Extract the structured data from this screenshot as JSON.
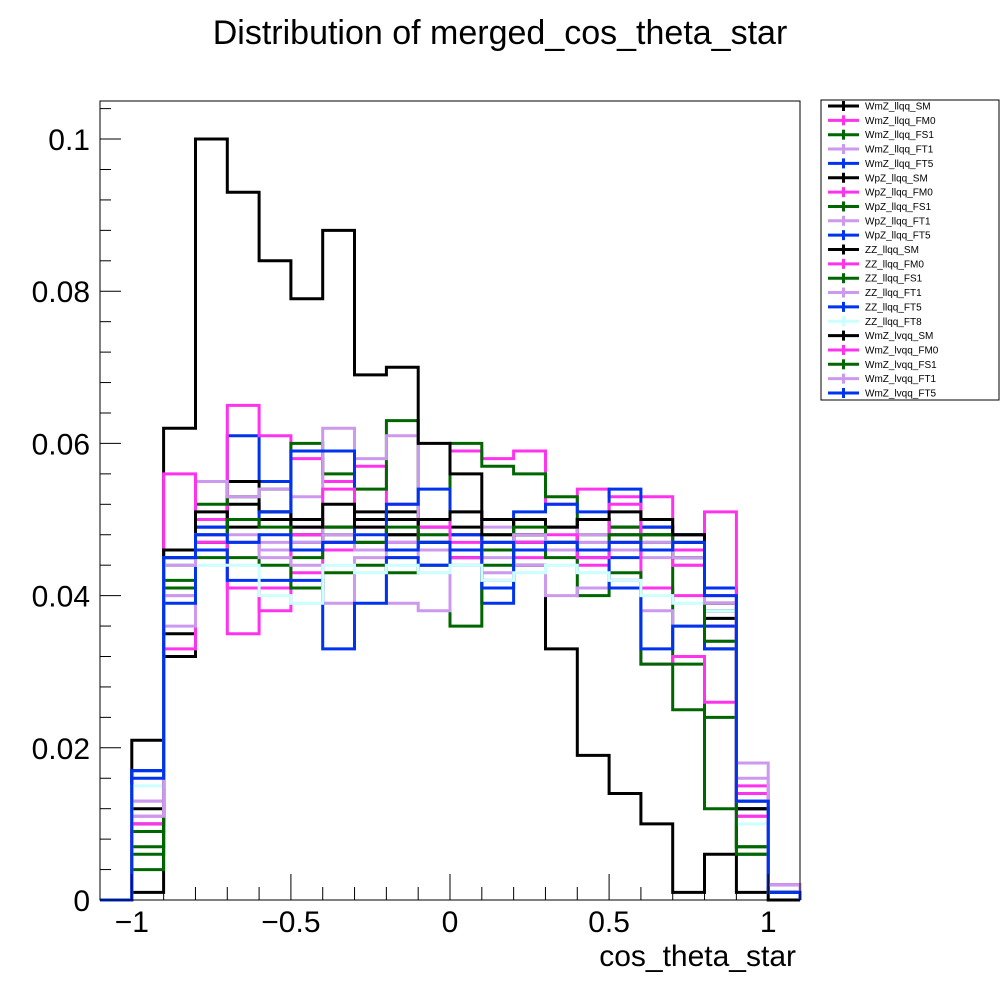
{
  "chart_data": {
    "type": "histogram",
    "title": "Distribution of merged_cos_theta_star",
    "xlabel": "cos_theta_star",
    "ylabel": "",
    "xlim": [
      -1.1,
      1.1
    ],
    "ylim": [
      0,
      0.105
    ],
    "bin_edges": [
      -1.1,
      -1.0,
      -0.9,
      -0.8,
      -0.7,
      -0.6,
      -0.5,
      -0.4,
      -0.3,
      -0.2,
      -0.1,
      0.0,
      0.1,
      0.2,
      0.3,
      0.4,
      0.5,
      0.6,
      0.7,
      0.8,
      0.9,
      1.0,
      1.1
    ],
    "x_ticks": [
      {
        "value": -1,
        "label": "−1"
      },
      {
        "value": -0.5,
        "label": "−0.5"
      },
      {
        "value": 0,
        "label": "0"
      },
      {
        "value": 0.5,
        "label": "0.5"
      },
      {
        "value": 1,
        "label": "1"
      }
    ],
    "y_ticks": [
      {
        "value": 0,
        "label": "0"
      },
      {
        "value": 0.02,
        "label": "0.02"
      },
      {
        "value": 0.04,
        "label": "0.04"
      },
      {
        "value": 0.06,
        "label": "0.06"
      },
      {
        "value": 0.08,
        "label": "0.08"
      },
      {
        "value": 0.1,
        "label": "0.1"
      }
    ],
    "legend_position": "right",
    "series": [
      {
        "name": "WmZ_llqq_SM",
        "color": "#000000",
        "values": [
          0,
          0.001,
          0.035,
          0.05,
          0.052,
          0.051,
          0.05,
          0.049,
          0.05,
          0.051,
          0.049,
          0.048,
          0.047,
          0.048,
          0.049,
          0.05,
          0.049,
          0.048,
          0.047,
          0.038,
          0.013,
          0.001
        ]
      },
      {
        "name": "WmZ_llqq_FM0",
        "color": "#ff33ee",
        "values": [
          0,
          0.011,
          0.046,
          0.047,
          0.035,
          0.041,
          0.043,
          0.046,
          0.047,
          0.046,
          0.047,
          0.048,
          0.046,
          0.045,
          0.047,
          0.044,
          0.042,
          0.041,
          0.04,
          0.036,
          0.011,
          0.001
        ]
      },
      {
        "name": "WmZ_llqq_FS1",
        "color": "#006600",
        "values": [
          0,
          0.004,
          0.042,
          0.046,
          0.047,
          0.046,
          0.045,
          0.049,
          0.047,
          0.048,
          0.046,
          0.045,
          0.048,
          0.047,
          0.046,
          0.048,
          0.047,
          0.048,
          0.046,
          0.033,
          0.006,
          0.001
        ]
      },
      {
        "name": "WmZ_llqq_FT1",
        "color": "#cc99ee",
        "values": [
          0,
          0.009,
          0.04,
          0.049,
          0.048,
          0.047,
          0.049,
          0.047,
          0.046,
          0.045,
          0.048,
          0.046,
          0.045,
          0.047,
          0.046,
          0.047,
          0.046,
          0.045,
          0.046,
          0.037,
          0.012,
          0.002
        ]
      },
      {
        "name": "WmZ_llqq_FT5",
        "color": "#0033ee",
        "values": [
          0,
          0.017,
          0.046,
          0.049,
          0.061,
          0.055,
          0.047,
          0.047,
          0.046,
          0.046,
          0.047,
          0.045,
          0.047,
          0.046,
          0.047,
          0.046,
          0.045,
          0.046,
          0.045,
          0.041,
          0.013,
          0.001
        ]
      },
      {
        "name": "WpZ_llqq_SM",
        "color": "#000000",
        "values": [
          0,
          0.012,
          0.032,
          0.047,
          0.055,
          0.051,
          0.048,
          0.047,
          0.051,
          0.05,
          0.047,
          0.049,
          0.05,
          0.048,
          0.047,
          0.05,
          0.048,
          0.049,
          0.048,
          0.037,
          0.012,
          0.001
        ]
      },
      {
        "name": "WpZ_llqq_FM0",
        "color": "#ff33ee",
        "values": [
          0,
          0.009,
          0.033,
          0.05,
          0.065,
          0.061,
          0.058,
          0.055,
          0.057,
          0.052,
          0.05,
          0.059,
          0.058,
          0.059,
          0.052,
          0.054,
          0.053,
          0.053,
          0.046,
          0.051,
          0.015,
          0.001
        ]
      },
      {
        "name": "WpZ_llqq_FS1",
        "color": "#006600",
        "values": [
          0,
          0.007,
          0.041,
          0.052,
          0.053,
          0.054,
          0.06,
          0.056,
          0.054,
          0.063,
          0.048,
          0.06,
          0.057,
          0.056,
          0.053,
          0.05,
          0.049,
          0.048,
          0.031,
          0.024,
          0.007,
          0.001
        ]
      },
      {
        "name": "WpZ_llqq_FT1",
        "color": "#cc99ee",
        "values": [
          0,
          0.013,
          0.036,
          0.055,
          0.053,
          0.054,
          0.053,
          0.062,
          0.058,
          0.061,
          0.05,
          0.051,
          0.049,
          0.05,
          0.049,
          0.048,
          0.047,
          0.046,
          0.044,
          0.039,
          0.018,
          0.002
        ]
      },
      {
        "name": "WpZ_llqq_FT5",
        "color": "#0033ee",
        "values": [
          0,
          0.017,
          0.045,
          0.049,
          0.05,
          0.051,
          0.059,
          0.059,
          0.046,
          0.052,
          0.054,
          0.048,
          0.039,
          0.051,
          0.052,
          0.051,
          0.054,
          0.049,
          0.048,
          0.036,
          0.013,
          0.002
        ]
      },
      {
        "name": "ZZ_llqq_SM",
        "color": "#000000",
        "values": [
          0,
          0.021,
          0.062,
          0.1,
          0.093,
          0.084,
          0.079,
          0.088,
          0.069,
          0.07,
          0.06,
          0.056,
          0.05,
          0.044,
          0.033,
          0.019,
          0.014,
          0.01,
          0.001,
          0.006,
          0.001,
          0
        ]
      },
      {
        "name": "ZZ_llqq_FM0",
        "color": "#ff33ee",
        "values": [
          0,
          0.01,
          0.056,
          0.047,
          0.041,
          0.038,
          0.049,
          0.054,
          0.049,
          0.047,
          0.05,
          0.045,
          0.042,
          0.047,
          0.048,
          0.046,
          0.052,
          0.031,
          0.032,
          0.026,
          0.014,
          0.002
        ]
      },
      {
        "name": "ZZ_llqq_FS1",
        "color": "#006600",
        "values": [
          0,
          0.009,
          0.044,
          0.045,
          0.045,
          0.044,
          0.041,
          0.043,
          0.044,
          0.043,
          0.044,
          0.036,
          0.044,
          0.047,
          0.045,
          0.04,
          0.043,
          0.031,
          0.025,
          0.012,
          0.006,
          0.001
        ]
      },
      {
        "name": "ZZ_llqq_FT1",
        "color": "#cc99ee",
        "values": [
          0,
          0.013,
          0.04,
          0.048,
          0.047,
          0.045,
          0.044,
          0.039,
          0.045,
          0.039,
          0.038,
          0.044,
          0.043,
          0.044,
          0.04,
          0.041,
          0.042,
          0.038,
          0.036,
          0.034,
          0.016,
          0.002
        ]
      },
      {
        "name": "ZZ_llqq_FT5",
        "color": "#0033ee",
        "values": [
          0,
          0.017,
          0.039,
          0.046,
          0.042,
          0.042,
          0.042,
          0.033,
          0.039,
          0.045,
          0.044,
          0.046,
          0.041,
          0.047,
          0.046,
          0.045,
          0.041,
          0.033,
          0.036,
          0.033,
          0.012,
          0.001
        ]
      },
      {
        "name": "ZZ_llqq_FT8",
        "color": "#ccffff",
        "values": [
          0,
          0.015,
          0.044,
          0.044,
          0.044,
          0.04,
          0.039,
          0.044,
          0.043,
          0.044,
          0.043,
          0.044,
          0.042,
          0.043,
          0.044,
          0.043,
          0.042,
          0.04,
          0.039,
          0.038,
          0.01,
          0.001
        ]
      },
      {
        "name": "WmZ_lvqq_SM",
        "color": "#000000",
        "values": [
          0,
          0.01,
          0.046,
          0.051,
          0.049,
          0.05,
          0.049,
          0.052,
          0.049,
          0.048,
          0.05,
          0.051,
          0.048,
          0.05,
          0.049,
          0.05,
          0.051,
          0.05,
          0.048,
          0.039,
          0.012,
          0.001
        ]
      },
      {
        "name": "WmZ_lvqq_FM0",
        "color": "#ff33ee",
        "values": [
          0,
          0.01,
          0.045,
          0.048,
          0.047,
          0.046,
          0.048,
          0.047,
          0.046,
          0.047,
          0.049,
          0.047,
          0.046,
          0.047,
          0.047,
          0.045,
          0.047,
          0.046,
          0.044,
          0.04,
          0.011,
          0.001
        ]
      },
      {
        "name": "WmZ_lvqq_FS1",
        "color": "#006600",
        "values": [
          0,
          0.006,
          0.045,
          0.048,
          0.05,
          0.049,
          0.046,
          0.048,
          0.047,
          0.049,
          0.047,
          0.046,
          0.046,
          0.049,
          0.047,
          0.046,
          0.048,
          0.047,
          0.045,
          0.034,
          0.007,
          0.001
        ]
      },
      {
        "name": "WmZ_lvqq_FT1",
        "color": "#cc99ee",
        "values": [
          0,
          0.011,
          0.044,
          0.048,
          0.047,
          0.046,
          0.047,
          0.048,
          0.046,
          0.047,
          0.046,
          0.046,
          0.047,
          0.048,
          0.046,
          0.047,
          0.046,
          0.047,
          0.045,
          0.039,
          0.013,
          0.002
        ]
      },
      {
        "name": "WmZ_lvqq_FT5",
        "color": "#0033ee",
        "values": [
          0,
          0.016,
          0.045,
          0.048,
          0.047,
          0.048,
          0.046,
          0.047,
          0.048,
          0.046,
          0.047,
          0.046,
          0.047,
          0.046,
          0.047,
          0.046,
          0.047,
          0.046,
          0.047,
          0.04,
          0.013,
          0.001
        ]
      }
    ]
  }
}
